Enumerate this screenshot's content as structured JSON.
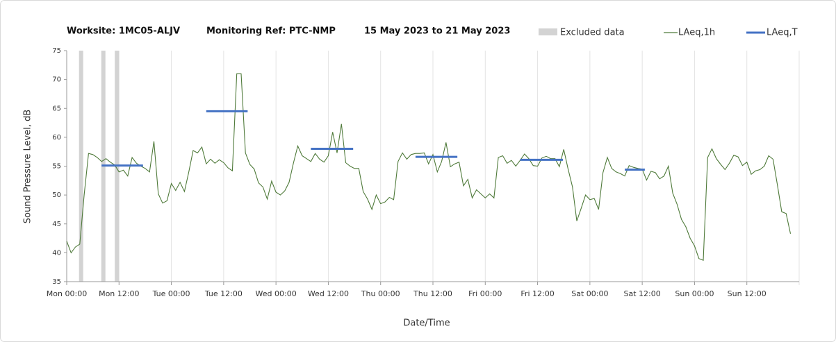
{
  "chart_data": {
    "type": "line",
    "title": [
      "Worksite: 1MC05-ALJV",
      "Monitoring Ref: PTC-NMP",
      "15 May 2023 to 21 May 2023"
    ],
    "xlabel": "Date/Time",
    "ylabel": "Sound Pressure Level, dB",
    "xlim": [
      0,
      168
    ],
    "ylim": [
      35,
      75
    ],
    "yticks": [
      35,
      40,
      45,
      50,
      55,
      60,
      65,
      70,
      75
    ],
    "xticks": [
      {
        "value": 0,
        "label": "Mon 00:00"
      },
      {
        "value": 12,
        "label": "Mon 12:00"
      },
      {
        "value": 24,
        "label": "Tue 00:00"
      },
      {
        "value": 36,
        "label": "Tue 12:00"
      },
      {
        "value": 48,
        "label": "Wed 00:00"
      },
      {
        "value": 60,
        "label": "Wed 12:00"
      },
      {
        "value": 72,
        "label": "Thu 00:00"
      },
      {
        "value": 84,
        "label": "Thu 12:00"
      },
      {
        "value": 96,
        "label": "Fri 00:00"
      },
      {
        "value": 108,
        "label": "Fri 12:00"
      },
      {
        "value": 120,
        "label": "Sat 00:00"
      },
      {
        "value": 132,
        "label": "Sat 12:00"
      },
      {
        "value": 144,
        "label": "Sun 00:00"
      },
      {
        "value": 156,
        "label": "Sun 12:00"
      }
    ],
    "xgrid": true,
    "excluded": {
      "name": "Excluded data",
      "color": "#d3d3d3",
      "x": [
        3.3,
        8.4,
        11.5
      ]
    },
    "series": [
      {
        "name": "LAeq,1h",
        "color": "#4f7a3a",
        "x": [
          0,
          1,
          2,
          3,
          4,
          5,
          6,
          7,
          8,
          9,
          10,
          11,
          12,
          13,
          14,
          15,
          16,
          17,
          18,
          19,
          20,
          21,
          22,
          23,
          24,
          25,
          26,
          27,
          28,
          29,
          30,
          31,
          32,
          33,
          34,
          35,
          36,
          37,
          38,
          39,
          40,
          41,
          42,
          43,
          44,
          45,
          46,
          47,
          48,
          49,
          50,
          51,
          52,
          53,
          54,
          55,
          56,
          57,
          58,
          59,
          60,
          61,
          62,
          63,
          64,
          65,
          66,
          67,
          68,
          69,
          70,
          71,
          72,
          73,
          74,
          75,
          76,
          77,
          78,
          79,
          80,
          81,
          82,
          83,
          84,
          85,
          86,
          87,
          88,
          89,
          90,
          91,
          92,
          93,
          94,
          95,
          96,
          97,
          98,
          99,
          100,
          101,
          102,
          103,
          104,
          105,
          106,
          107,
          108,
          109,
          110,
          111,
          112,
          113,
          114,
          115,
          116,
          117,
          118,
          119,
          120,
          121,
          122,
          123,
          124,
          125,
          126,
          127,
          128,
          129,
          130,
          131,
          132,
          133,
          134,
          135,
          136,
          137,
          138,
          139,
          140,
          141,
          142,
          143,
          144,
          145,
          146,
          147,
          148,
          149,
          150,
          151,
          152,
          153,
          154,
          155,
          156,
          157,
          158,
          159,
          160,
          161,
          162,
          163,
          164,
          165,
          166
        ],
        "values": [
          42,
          40,
          41,
          41.5,
          50,
          57.2,
          57,
          56.5,
          55.8,
          56.3,
          55.7,
          55.2,
          54,
          54.3,
          53.3,
          56.5,
          55.5,
          55,
          54.6,
          54,
          59.3,
          50.2,
          48.6,
          49,
          52,
          50.8,
          52.2,
          50.6,
          54,
          57.7,
          57.3,
          58.3,
          55.4,
          56.2,
          55.5,
          56.1,
          55.6,
          54.7,
          54.2,
          71,
          71,
          57.3,
          55.3,
          54.5,
          52.1,
          51.4,
          49.3,
          52.4,
          50.5,
          50,
          50.7,
          52.2,
          55.5,
          58.5,
          56.8,
          56.3,
          55.8,
          57.2,
          56.2,
          55.7,
          56.8,
          60.9,
          57.3,
          62.3,
          55.6,
          55,
          54.6,
          54.6,
          50.6,
          49.3,
          47.5,
          50,
          48.5,
          48.8,
          49.6,
          49.2,
          55.8,
          57.3,
          56.2,
          57,
          57.2,
          57.2,
          57.3,
          55.4,
          57,
          54,
          55.8,
          59.1,
          54.9,
          55.4,
          55.7,
          51.6,
          52.7,
          49.5,
          50.9,
          50.2,
          49.5,
          50.2,
          49.5,
          56.5,
          56.8,
          55.5,
          56,
          55,
          56,
          57.1,
          56.3,
          55.1,
          55,
          56.4,
          56.7,
          56.3,
          56.3,
          54.9,
          57.9,
          54.5,
          51.4,
          45.5,
          47.7,
          50,
          49.2,
          49.4,
          47.5,
          53.9,
          56.5,
          54.6,
          54,
          53.7,
          53.3,
          55.1,
          54.8,
          54.6,
          54.5,
          52.6,
          54.1,
          53.9,
          52.8,
          53.3,
          55,
          50.3,
          48.4,
          45.8,
          44.5,
          42.5,
          41.2,
          39,
          38.7,
          56.5,
          58,
          56.3,
          55.3,
          54.4,
          55.5,
          56.9,
          56.6,
          55.1,
          55.7,
          53.6,
          54.2,
          54.4,
          55,
          56.8,
          56.2,
          51.8,
          47.1,
          46.8,
          43.3
        ]
      }
    ],
    "periods": {
      "name": "LAeq,T",
      "color": "#4472c4",
      "start": [
        8,
        32,
        56,
        80,
        104,
        128
      ],
      "end": [
        17.5,
        41.5,
        65.7,
        89.6,
        113.8,
        132.6
      ],
      "values": [
        55.1,
        64.5,
        58,
        56.6,
        56.1,
        54.4
      ]
    }
  }
}
